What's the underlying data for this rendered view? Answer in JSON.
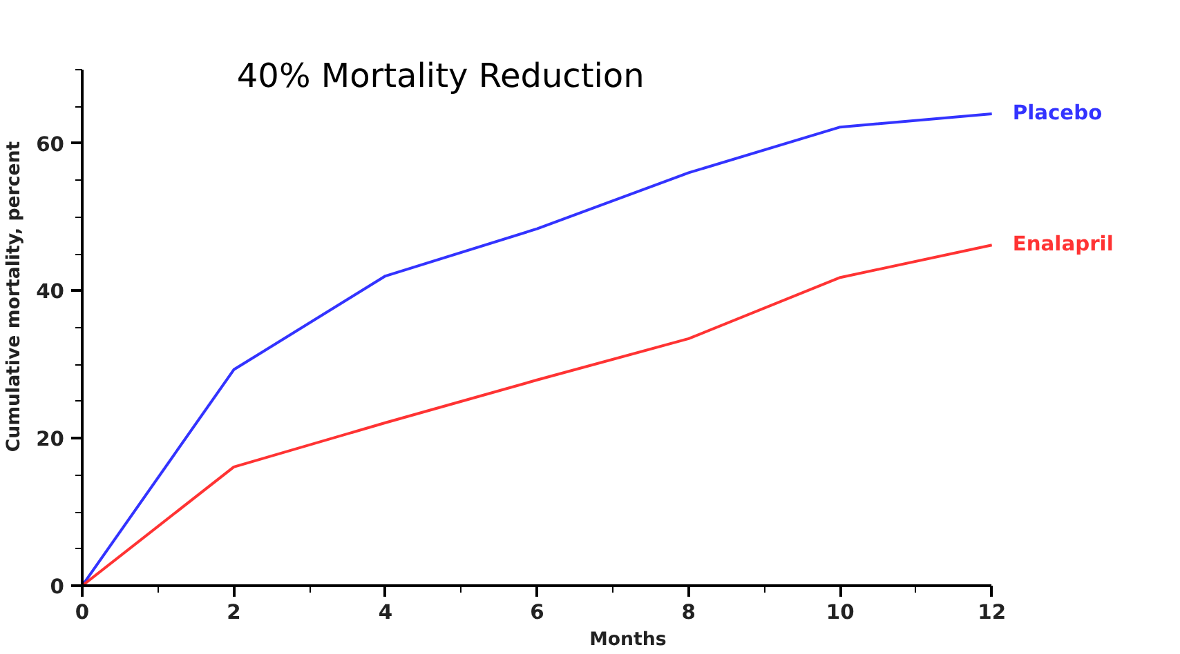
{
  "chart_data": {
    "type": "line",
    "title": "40% Mortality Reduction",
    "xlabel": "Months",
    "ylabel": "Cumulative mortality, percent",
    "x": [
      0,
      2,
      4,
      6,
      8,
      10,
      12
    ],
    "series": [
      {
        "name": "Placebo",
        "color": "#3333ff",
        "values": [
          0,
          29.3,
          42,
          48.4,
          56,
          62.2,
          64
        ]
      },
      {
        "name": "Enalapril",
        "color": "#ff3333",
        "values": [
          0,
          16.1,
          22.1,
          27.9,
          33.5,
          41.8,
          46.2
        ]
      }
    ],
    "xlim": [
      0,
      12
    ],
    "xticks": [
      0,
      2,
      4,
      6,
      8,
      10,
      12
    ],
    "ylim": [
      0,
      70
    ],
    "yticks": [
      0,
      20,
      40,
      60
    ],
    "grid": false,
    "marker": "none",
    "line_style": "solid"
  }
}
